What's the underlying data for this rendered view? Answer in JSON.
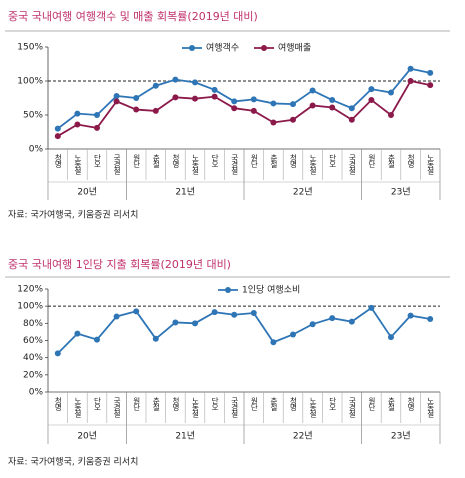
{
  "chart_data": [
    {
      "type": "line",
      "title": "중국 국내여행 여행객수 및 매출 회복률(2019년 대비)",
      "category_groups": [
        {
          "name": "20년",
          "categories": [
            "청명",
            "노동절",
            "단오",
            "국경절"
          ]
        },
        {
          "name": "21년",
          "categories": [
            "원단",
            "춘절",
            "청명",
            "노동절",
            "단오",
            "국경절"
          ]
        },
        {
          "name": "22년",
          "categories": [
            "원단",
            "춘절",
            "청명",
            "노동절",
            "단오",
            "국경절"
          ]
        },
        {
          "name": "23년",
          "categories": [
            "원단",
            "춘절",
            "청명",
            "노동절"
          ]
        }
      ],
      "series": [
        {
          "name": "여행객수",
          "color": "#2e75b6",
          "values": [
            30,
            52,
            50,
            78,
            75,
            93,
            102,
            98,
            87,
            70,
            73,
            67,
            66,
            86,
            72,
            60,
            88,
            83,
            118,
            112
          ]
        },
        {
          "name": "여행매출",
          "color": "#8b1a4a",
          "values": [
            19,
            36,
            31,
            70,
            58,
            56,
            76,
            74,
            77,
            60,
            56,
            39,
            43,
            64,
            61,
            43,
            72,
            50,
            100,
            94
          ]
        }
      ],
      "ylim": [
        0,
        150
      ],
      "yticks": [
        {
          "value": 0,
          "label": "0%"
        },
        {
          "value": 50,
          "label": "50%"
        },
        {
          "value": 100,
          "label": "100%"
        },
        {
          "value": 150,
          "label": "150%"
        }
      ],
      "reference_line": 100,
      "legend": "top",
      "source": "자료: 국가여행국, 키움증권 리서치"
    },
    {
      "type": "line",
      "title": "중국 국내여행 1인당 지출 회복률(2019년 대비)",
      "category_groups": [
        {
          "name": "20년",
          "categories": [
            "청명",
            "노동절",
            "단오",
            "국경절"
          ]
        },
        {
          "name": "21년",
          "categories": [
            "원단",
            "춘절",
            "청명",
            "노동절",
            "단오",
            "국경절"
          ]
        },
        {
          "name": "22년",
          "categories": [
            "원단",
            "춘절",
            "청명",
            "노동절",
            "단오",
            "국경절"
          ]
        },
        {
          "name": "23년",
          "categories": [
            "원단",
            "춘절",
            "청명",
            "노동절"
          ]
        }
      ],
      "series": [
        {
          "name": "1인당 여행소비",
          "color": "#2e75b6",
          "values": [
            45,
            68,
            61,
            88,
            94,
            62,
            81,
            80,
            93,
            90,
            92,
            58,
            67,
            79,
            86,
            82,
            98,
            64,
            89,
            85
          ]
        }
      ],
      "ylim": [
        0,
        120
      ],
      "yticks": [
        {
          "value": 0,
          "label": "0%"
        },
        {
          "value": 20,
          "label": "20%"
        },
        {
          "value": 40,
          "label": "40%"
        },
        {
          "value": 60,
          "label": "60%"
        },
        {
          "value": 80,
          "label": "80%"
        },
        {
          "value": 100,
          "label": "100%"
        },
        {
          "value": 120,
          "label": "120%"
        }
      ],
      "reference_line": 100,
      "legend": "top",
      "source": "자료: 국가여행국, 키움증권 리서치"
    }
  ]
}
